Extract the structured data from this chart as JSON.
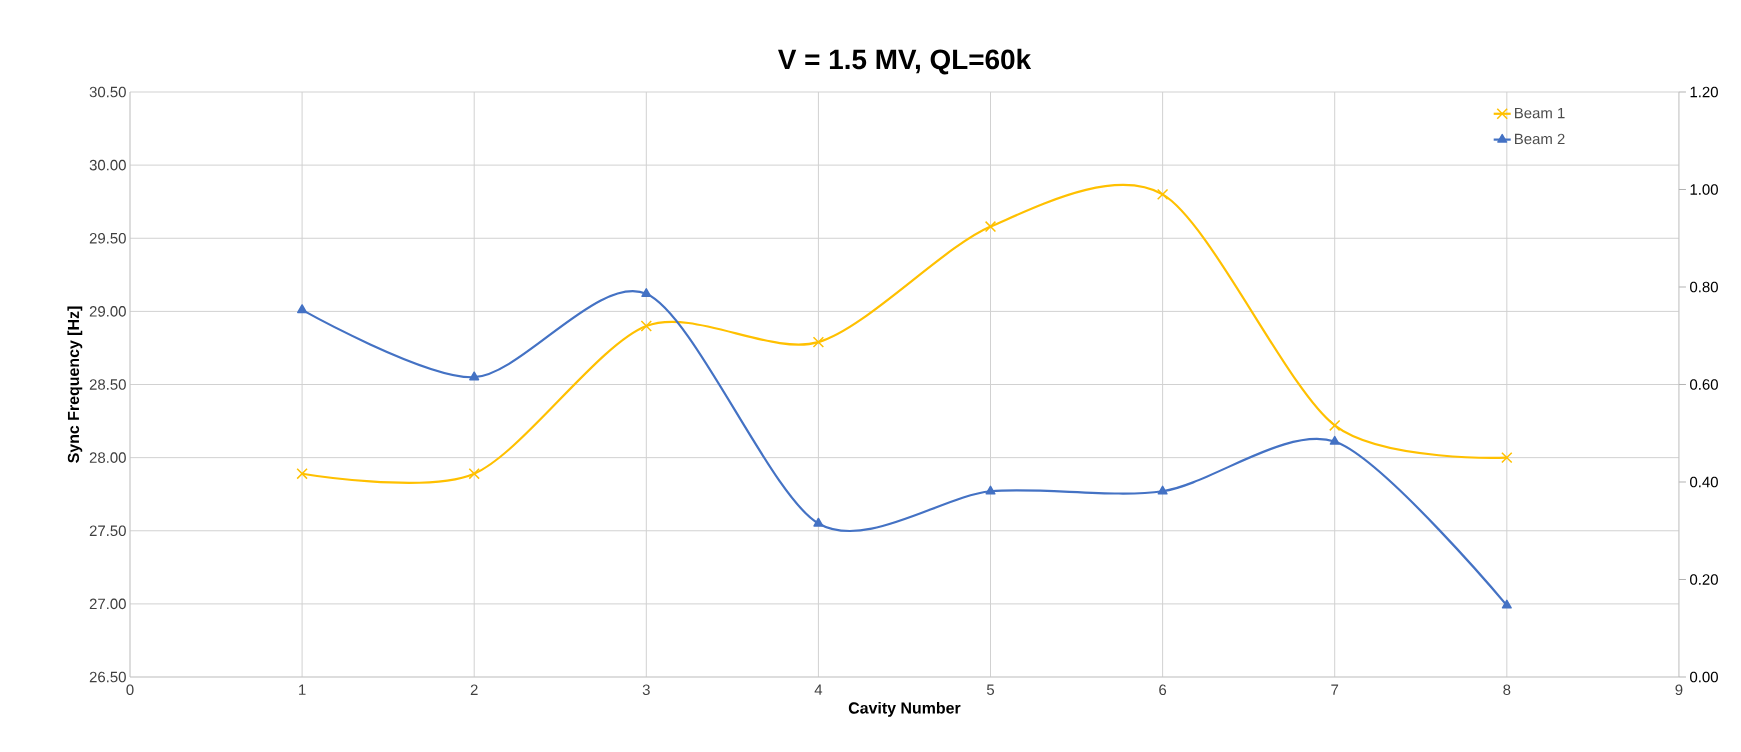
{
  "chart_data": {
    "type": "line",
    "title": "V = 1.5 MV, QL=60k",
    "xlabel": "Cavity Number",
    "ylabel": "Sync Frequency [Hz]",
    "x": [
      1,
      2,
      3,
      4,
      5,
      6,
      7,
      8
    ],
    "series": [
      {
        "name": "Beam 1",
        "color": "#ffc000",
        "marker": "cross",
        "values": [
          27.89,
          27.89,
          28.9,
          28.79,
          29.58,
          29.8,
          28.22,
          28.0
        ]
      },
      {
        "name": "Beam 2",
        "color": "#4472c4",
        "marker": "triangle",
        "values": [
          29.01,
          28.55,
          29.12,
          27.55,
          27.77,
          27.77,
          28.11,
          26.99
        ]
      }
    ],
    "xlim": [
      0,
      9
    ],
    "xticks": [
      0,
      1,
      2,
      3,
      4,
      5,
      6,
      7,
      8,
      9
    ],
    "ylim": [
      26.5,
      30.5
    ],
    "yticks": [
      {
        "value": 26.5,
        "label": "26.50"
      },
      {
        "value": 27,
        "label": "27.00"
      },
      {
        "value": 27.5,
        "label": "27.50"
      },
      {
        "value": 28,
        "label": "28.00"
      },
      {
        "value": 28.5,
        "label": "28.50"
      },
      {
        "value": 29,
        "label": "29.00"
      },
      {
        "value": 29.5,
        "label": "29.50"
      },
      {
        "value": 30,
        "label": "30.00"
      },
      {
        "value": 30.5,
        "label": "30.50"
      }
    ],
    "y2lim": [
      0,
      1.2
    ],
    "y2ticks": [
      {
        "value": 0,
        "label": "0.00"
      },
      {
        "value": 0.2,
        "label": "0.20"
      },
      {
        "value": 0.4,
        "label": "0.40"
      },
      {
        "value": 0.6,
        "label": "0.60"
      },
      {
        "value": 0.8,
        "label": "0.80"
      },
      {
        "value": 1,
        "label": "1.00"
      },
      {
        "value": 1.2,
        "label": "1.20"
      }
    ],
    "grid": true,
    "legend": "top right",
    "line_style": "solid"
  }
}
